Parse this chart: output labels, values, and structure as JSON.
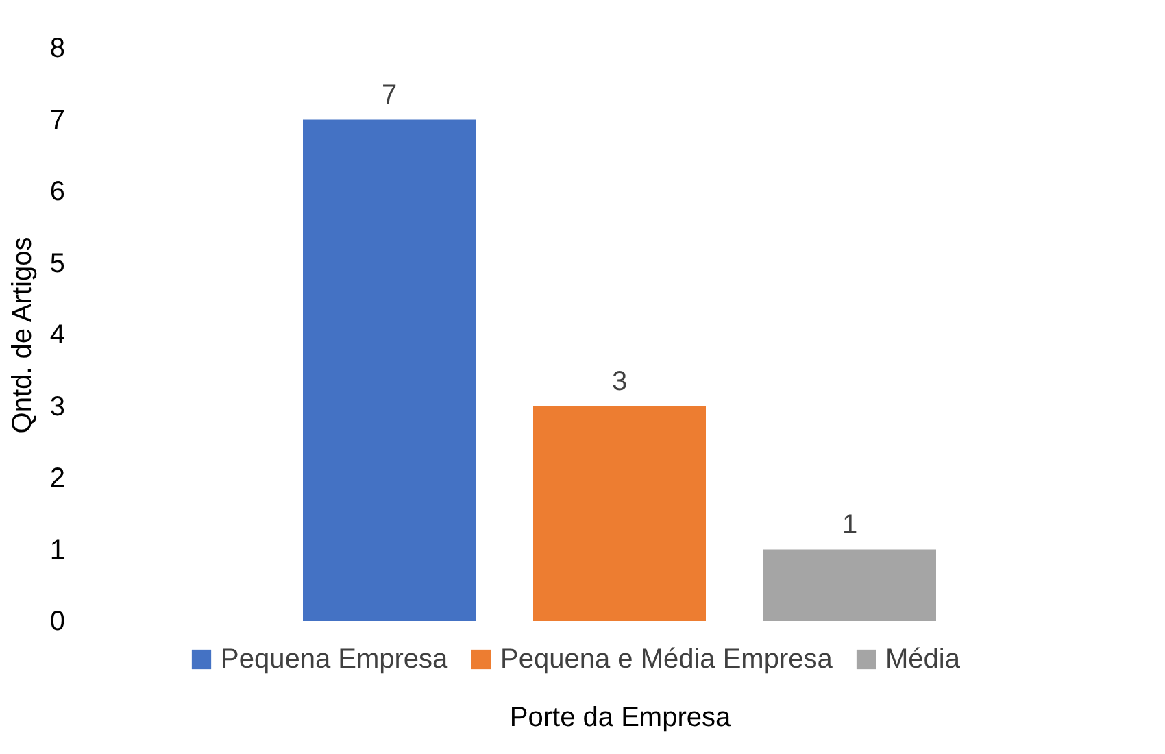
{
  "chart_data": {
    "type": "bar",
    "xlabel": "Porte da Empresa",
    "ylabel": "Qntd. de Artigos",
    "categories": [
      null
    ],
    "series": [
      {
        "name": "Pequena Empresa",
        "color": "#4472c4",
        "values": [
          7
        ]
      },
      {
        "name": "Pequena e Média Empresa",
        "color": "#ed7d31",
        "values": [
          3
        ]
      },
      {
        "name": "Média",
        "color": "#a5a5a5",
        "values": [
          1
        ]
      }
    ],
    "ylim": [
      0,
      8
    ],
    "yticks": [
      0,
      1,
      2,
      3,
      4,
      5,
      6,
      7,
      8
    ],
    "data_labels": true,
    "legend": "bottom",
    "grid": false
  }
}
